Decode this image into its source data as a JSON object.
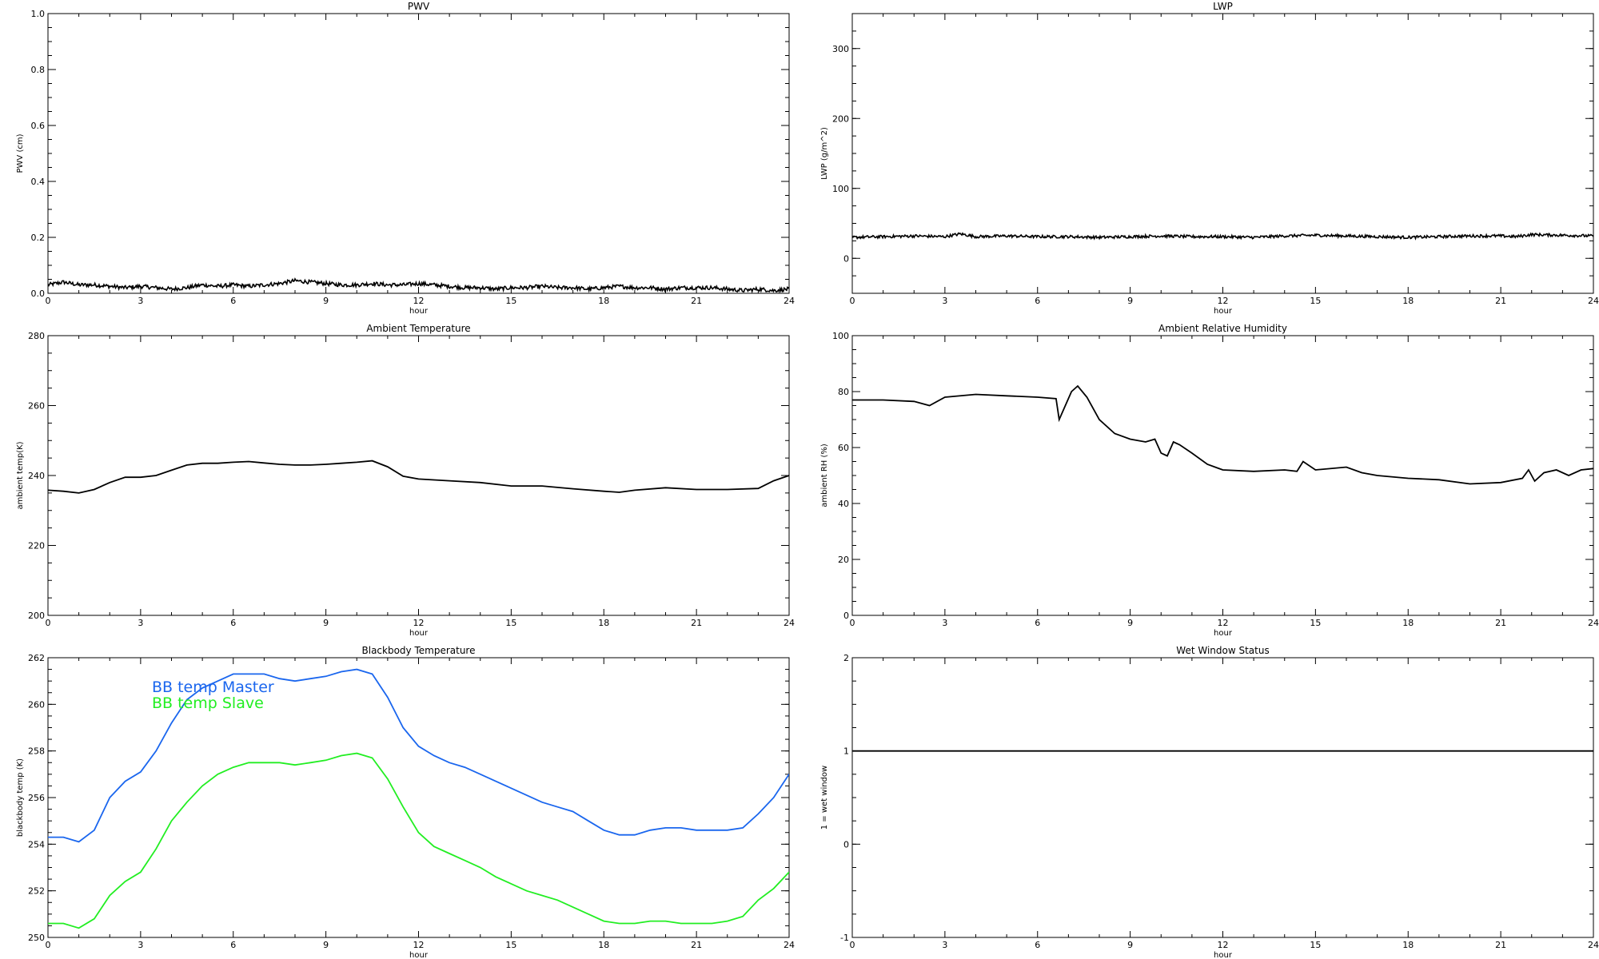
{
  "chart_data": [
    {
      "id": "pwv",
      "type": "line",
      "title": "PWV",
      "xlabel": "hour",
      "ylabel": "PWV (cm)",
      "xlim": [
        0,
        24
      ],
      "ylim": [
        0,
        1.0
      ],
      "xticks": [
        "0",
        "3",
        "6",
        "9",
        "12",
        "15",
        "18",
        "21",
        "24"
      ],
      "yticks": [
        "0.0",
        "0.2",
        "0.4",
        "0.6",
        "0.8",
        "1.0"
      ],
      "grid": false,
      "noisy": true,
      "noise_amp": 0.007,
      "series": [
        {
          "color": "#000000",
          "x": [
            0,
            0.5,
            1,
            1.5,
            2,
            2.5,
            3,
            3.5,
            4,
            4.5,
            5,
            5.5,
            6,
            6.5,
            7,
            7.5,
            8,
            8.5,
            9,
            9.5,
            10,
            10.5,
            11,
            11.5,
            12,
            12.5,
            13,
            13.5,
            14,
            14.5,
            15,
            15.5,
            16,
            16.5,
            17,
            17.5,
            18,
            18.5,
            19,
            19.5,
            20,
            20.5,
            21,
            21.5,
            22,
            22.5,
            23,
            23.5,
            24
          ],
          "y": [
            0.03,
            0.04,
            0.03,
            0.03,
            0.025,
            0.02,
            0.025,
            0.02,
            0.015,
            0.02,
            0.03,
            0.025,
            0.03,
            0.025,
            0.03,
            0.035,
            0.045,
            0.04,
            0.035,
            0.03,
            0.03,
            0.035,
            0.03,
            0.03,
            0.035,
            0.03,
            0.025,
            0.02,
            0.02,
            0.015,
            0.02,
            0.02,
            0.025,
            0.02,
            0.02,
            0.015,
            0.02,
            0.025,
            0.02,
            0.02,
            0.015,
            0.02,
            0.02,
            0.02,
            0.015,
            0.01,
            0.015,
            0.01,
            0.015
          ]
        }
      ]
    },
    {
      "id": "lwp",
      "type": "line",
      "title": "LWP",
      "xlabel": "hour",
      "ylabel": "LWP (g/m^2)",
      "xlim": [
        0,
        24
      ],
      "ylim": [
        -50,
        350
      ],
      "xticks": [
        "0",
        "3",
        "6",
        "9",
        "12",
        "15",
        "18",
        "21",
        "24"
      ],
      "yticks": [
        "0",
        "100",
        "200",
        "300"
      ],
      "ytick_values": [
        0,
        100,
        200,
        300
      ],
      "grid": false,
      "noisy": true,
      "noise_amp": 2.0,
      "series": [
        {
          "color": "#000000",
          "x": [
            0,
            1,
            2,
            3,
            3.5,
            4,
            5,
            6,
            7,
            8,
            9,
            10,
            11,
            12,
            13,
            14,
            15,
            16,
            17,
            18,
            19,
            20,
            21,
            21.5,
            22,
            23,
            24
          ],
          "y": [
            30,
            31,
            32,
            31,
            35,
            31,
            32,
            31,
            31,
            30,
            31,
            32,
            31,
            31,
            30,
            32,
            33,
            32,
            31,
            30,
            31,
            32,
            32,
            31,
            34,
            33,
            32
          ]
        }
      ]
    },
    {
      "id": "ambient-temperature",
      "type": "line",
      "title": "Ambient Temperature",
      "xlabel": "hour",
      "ylabel": "ambient temp(K)",
      "xlim": [
        0,
        24
      ],
      "ylim": [
        200,
        280
      ],
      "xticks": [
        "0",
        "3",
        "6",
        "9",
        "12",
        "15",
        "18",
        "21",
        "24"
      ],
      "yticks": [
        "200",
        "220",
        "240",
        "260",
        "280"
      ],
      "grid": false,
      "noisy": false,
      "series": [
        {
          "color": "#000000",
          "x": [
            0,
            0.5,
            1,
            1.5,
            2,
            2.5,
            3,
            3.5,
            4,
            4.5,
            5,
            5.5,
            6,
            6.5,
            7,
            7.5,
            8,
            8.5,
            9,
            9.5,
            10,
            10.5,
            11,
            11.5,
            12,
            13,
            14,
            15,
            16,
            17,
            18,
            18.5,
            19,
            20,
            21,
            22,
            23,
            23.5,
            24
          ],
          "y": [
            235.8,
            235.5,
            235,
            236,
            238,
            239.5,
            239.5,
            240,
            241.5,
            243,
            243.5,
            243.5,
            243.8,
            244,
            243.6,
            243.2,
            243,
            243,
            243.2,
            243.5,
            243.8,
            244.2,
            242.5,
            239.8,
            239,
            238.5,
            238,
            237,
            237,
            236.2,
            235.5,
            235.2,
            235.8,
            236.5,
            236,
            236,
            236.3,
            238.5,
            240
          ]
        }
      ]
    },
    {
      "id": "ambient-relative-humidity",
      "type": "line",
      "title": "Ambient Relative Humidity",
      "xlabel": "hour",
      "ylabel": "ambient RH (%)",
      "xlim": [
        0,
        24
      ],
      "ylim": [
        0,
        100
      ],
      "xticks": [
        "0",
        "3",
        "6",
        "9",
        "12",
        "15",
        "18",
        "21",
        "24"
      ],
      "yticks": [
        "0",
        "20",
        "40",
        "60",
        "80",
        "100"
      ],
      "grid": false,
      "noisy": false,
      "series": [
        {
          "color": "#000000",
          "x": [
            0,
            1,
            2,
            2.5,
            3,
            4,
            5,
            6,
            6.6,
            6.7,
            6.9,
            7.1,
            7.3,
            7.6,
            8,
            8.5,
            9,
            9.5,
            9.8,
            10,
            10.2,
            10.4,
            10.6,
            11,
            11.5,
            12,
            13,
            14,
            14.4,
            14.6,
            15,
            16,
            16.5,
            17,
            18,
            19,
            20,
            21,
            21.7,
            21.9,
            22.1,
            22.4,
            22.8,
            23.2,
            23.6,
            24
          ],
          "y": [
            77,
            77,
            76.5,
            75,
            78,
            79,
            78.5,
            78,
            77.5,
            70,
            75,
            80,
            82,
            78,
            70,
            65,
            63,
            62,
            63,
            58,
            57,
            62,
            61,
            58,
            54,
            52,
            51.5,
            52,
            51.5,
            55,
            52,
            53,
            51,
            50,
            49,
            48.5,
            47,
            47.5,
            49,
            52,
            48,
            51,
            52,
            50,
            52,
            52.5
          ]
        }
      ]
    },
    {
      "id": "blackbody-temperature",
      "type": "line",
      "title": "Blackbody Temperature",
      "xlabel": "hour",
      "ylabel": "blackbody temp (K)",
      "xlim": [
        0,
        24
      ],
      "ylim": [
        250,
        262
      ],
      "xticks": [
        "0",
        "3",
        "6",
        "9",
        "12",
        "15",
        "18",
        "21",
        "24"
      ],
      "yticks": [
        "250",
        "252",
        "254",
        "256",
        "258",
        "260",
        "262"
      ],
      "grid": false,
      "noisy": false,
      "series": [
        {
          "name": "BB temp Master",
          "color": "#1a66ee",
          "x": [
            0,
            0.5,
            1,
            1.5,
            2,
            2.5,
            3,
            3.5,
            4,
            4.5,
            5,
            5.5,
            6,
            6.5,
            7,
            7.5,
            8,
            8.5,
            9,
            9.5,
            10,
            10.5,
            11,
            11.5,
            12,
            12.5,
            13,
            13.5,
            14,
            14.5,
            15,
            15.5,
            16,
            16.5,
            17,
            17.5,
            18,
            18.5,
            19,
            19.5,
            20,
            20.5,
            21,
            21.5,
            22,
            22.5,
            23,
            23.5,
            24
          ],
          "y": [
            254.3,
            254.3,
            254.1,
            254.6,
            256,
            256.7,
            257.1,
            258,
            259.2,
            260.2,
            260.7,
            261,
            261.3,
            261.3,
            261.3,
            261.1,
            261,
            261.1,
            261.2,
            261.4,
            261.5,
            261.3,
            260.3,
            259,
            258.2,
            257.8,
            257.5,
            257.3,
            257,
            256.7,
            256.4,
            256.1,
            255.8,
            255.6,
            255.4,
            255,
            254.6,
            254.4,
            254.4,
            254.6,
            254.7,
            254.7,
            254.6,
            254.6,
            254.6,
            254.7,
            255.3,
            256,
            257
          ]
        },
        {
          "name": "BB temp Slave",
          "color": "#22ee22",
          "x": [
            0,
            0.5,
            1,
            1.5,
            2,
            2.5,
            3,
            3.5,
            4,
            4.5,
            5,
            5.5,
            6,
            6.5,
            7,
            7.5,
            8,
            8.5,
            9,
            9.5,
            10,
            10.5,
            11,
            11.5,
            12,
            12.5,
            13,
            13.5,
            14,
            14.5,
            15,
            15.5,
            16,
            16.5,
            17,
            17.5,
            18,
            18.5,
            19,
            19.5,
            20,
            20.5,
            21,
            21.5,
            22,
            22.5,
            23,
            23.5,
            24
          ],
          "y": [
            250.6,
            250.6,
            250.4,
            250.8,
            251.8,
            252.4,
            252.8,
            253.8,
            255,
            255.8,
            256.5,
            257,
            257.3,
            257.5,
            257.5,
            257.5,
            257.4,
            257.5,
            257.6,
            257.8,
            257.9,
            257.7,
            256.8,
            255.6,
            254.5,
            253.9,
            253.6,
            253.3,
            253,
            252.6,
            252.3,
            252,
            251.8,
            251.6,
            251.3,
            251,
            250.7,
            250.6,
            250.6,
            250.7,
            250.7,
            250.6,
            250.6,
            250.6,
            250.7,
            250.9,
            251.6,
            252.1,
            252.8
          ]
        }
      ]
    },
    {
      "id": "wet-window-status",
      "type": "line",
      "title": "Wet Window Status",
      "xlabel": "hour",
      "ylabel": "1 = wet window",
      "xlim": [
        0,
        24
      ],
      "ylim": [
        -1,
        2
      ],
      "xticks": [
        "0",
        "3",
        "6",
        "9",
        "12",
        "15",
        "18",
        "21",
        "24"
      ],
      "yticks": [
        "-1",
        "0",
        "1",
        "2"
      ],
      "grid": false,
      "noisy": false,
      "series": [
        {
          "color": "#000000",
          "x": [
            0,
            24
          ],
          "y": [
            1,
            1
          ]
        }
      ]
    }
  ]
}
